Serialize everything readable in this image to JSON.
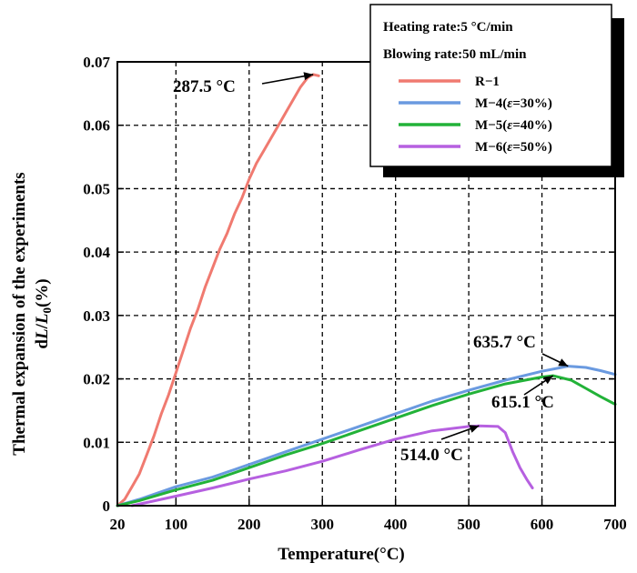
{
  "chart_data": {
    "type": "line",
    "xlabel": "Temperature(°C)",
    "ylabel_line1": "Thermal expansion of the experiments",
    "ylabel_line2_prefix": "d",
    "ylabel_line2_L": "L",
    "ylabel_line2_slash": "/",
    "ylabel_line2_L0": "L",
    "ylabel_line2_sub": "0",
    "ylabel_line2_suffix": "(%)",
    "xlim": [
      20,
      700
    ],
    "ylim": [
      0,
      0.07
    ],
    "xticks": [
      20,
      100,
      200,
      300,
      400,
      500,
      600,
      700
    ],
    "yticks": [
      0,
      0.01,
      0.02,
      0.03,
      0.04,
      0.05,
      0.06,
      0.07
    ],
    "xtick_labels": [
      "20",
      "100",
      "200",
      "300",
      "400",
      "500",
      "600",
      "700"
    ],
    "ytick_labels": [
      "0",
      "0.01",
      "0.02",
      "0.03",
      "0.04",
      "0.05",
      "0.06",
      "0.07"
    ],
    "grid": true,
    "legend": {
      "placement": "top-right",
      "header_lines": [
        "Heating rate:5 °C/min",
        "Blowing rate:50 mL/min"
      ]
    },
    "series": [
      {
        "name_parts": [
          "R−1"
        ],
        "color": "#f07a70",
        "points": [
          [
            20,
            0
          ],
          [
            30,
            0.001
          ],
          [
            40,
            0.003
          ],
          [
            50,
            0.005
          ],
          [
            60,
            0.008
          ],
          [
            70,
            0.011
          ],
          [
            80,
            0.0145
          ],
          [
            90,
            0.0175
          ],
          [
            100,
            0.021
          ],
          [
            110,
            0.0245
          ],
          [
            120,
            0.028
          ],
          [
            130,
            0.031
          ],
          [
            140,
            0.0345
          ],
          [
            150,
            0.0375
          ],
          [
            160,
            0.0405
          ],
          [
            170,
            0.043
          ],
          [
            180,
            0.046
          ],
          [
            190,
            0.0485
          ],
          [
            200,
            0.0515
          ],
          [
            210,
            0.054
          ],
          [
            220,
            0.056
          ],
          [
            230,
            0.058
          ],
          [
            240,
            0.06
          ],
          [
            250,
            0.062
          ],
          [
            260,
            0.064
          ],
          [
            270,
            0.066
          ],
          [
            280,
            0.0675
          ],
          [
            287.5,
            0.068
          ],
          [
            295,
            0.0678
          ]
        ]
      },
      {
        "name_parts": [
          "M−4(",
          "ε",
          "=30%)"
        ],
        "color": "#6a9ae0",
        "points": [
          [
            20,
            0
          ],
          [
            50,
            0.001
          ],
          [
            100,
            0.003
          ],
          [
            150,
            0.0045
          ],
          [
            200,
            0.0065
          ],
          [
            250,
            0.0085
          ],
          [
            300,
            0.0105
          ],
          [
            350,
            0.0125
          ],
          [
            400,
            0.0145
          ],
          [
            450,
            0.0165
          ],
          [
            500,
            0.0182
          ],
          [
            550,
            0.0198
          ],
          [
            600,
            0.0212
          ],
          [
            635.7,
            0.022
          ],
          [
            660,
            0.0218
          ],
          [
            680,
            0.0213
          ],
          [
            700,
            0.0207
          ]
        ]
      },
      {
        "name_parts": [
          "M−5(",
          "ε",
          "=40%)"
        ],
        "color": "#22b238",
        "points": [
          [
            20,
            0
          ],
          [
            50,
            0.0008
          ],
          [
            100,
            0.0025
          ],
          [
            150,
            0.004
          ],
          [
            200,
            0.006
          ],
          [
            250,
            0.008
          ],
          [
            300,
            0.0098
          ],
          [
            350,
            0.0118
          ],
          [
            400,
            0.0138
          ],
          [
            450,
            0.0158
          ],
          [
            500,
            0.0176
          ],
          [
            550,
            0.0192
          ],
          [
            600,
            0.0203
          ],
          [
            615.1,
            0.0205
          ],
          [
            640,
            0.0198
          ],
          [
            660,
            0.0185
          ],
          [
            680,
            0.0172
          ],
          [
            700,
            0.016
          ]
        ]
      },
      {
        "name_parts": [
          "M−6(",
          "ε",
          "=50%)"
        ],
        "color": "#b660e0",
        "points": [
          [
            40,
            0
          ],
          [
            60,
            0.0005
          ],
          [
            100,
            0.0015
          ],
          [
            150,
            0.0028
          ],
          [
            200,
            0.0042
          ],
          [
            250,
            0.0055
          ],
          [
            300,
            0.007
          ],
          [
            350,
            0.0088
          ],
          [
            400,
            0.0105
          ],
          [
            450,
            0.0118
          ],
          [
            500,
            0.0125
          ],
          [
            514,
            0.0126
          ],
          [
            540,
            0.0125
          ],
          [
            550,
            0.0115
          ],
          [
            560,
            0.0085
          ],
          [
            570,
            0.006
          ],
          [
            580,
            0.004
          ],
          [
            587,
            0.0028
          ]
        ]
      }
    ],
    "annotations": [
      {
        "text": "287.5 °C",
        "point": [
          287.5,
          0.068
        ]
      },
      {
        "text": "635.7 °C",
        "point": [
          635.7,
          0.022
        ]
      },
      {
        "text": "615.1 °C",
        "point": [
          615.1,
          0.0205
        ]
      },
      {
        "text": "514.0 °C",
        "point": [
          514,
          0.0126
        ]
      }
    ]
  }
}
